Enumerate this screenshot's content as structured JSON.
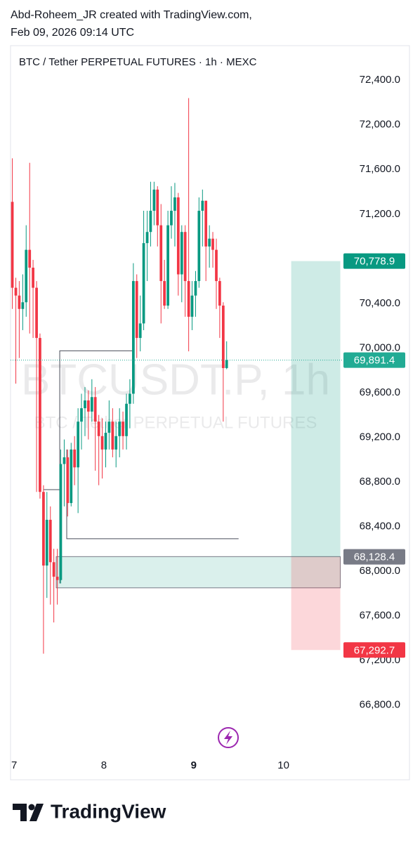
{
  "header": {
    "line1": "Abd-Roheem_JR created with TradingView.com,",
    "line2": "Feb 09, 2026 09:14 UTC"
  },
  "chart_data": {
    "type": "candlestick",
    "title": "BTC / Tether PERPETUAL FUTURES · 1h · MEXC",
    "watermark": {
      "symbol": "BTCUSDT.P, 1h",
      "description": "BTC / Tether PERPETUAL FUTURES"
    },
    "up_color": "#089981",
    "down_color": "#f23645",
    "grid": false,
    "xlim": [
      6.96,
      10.66
    ],
    "xticks": [
      7,
      8,
      9,
      10
    ],
    "ylim": [
      66350,
      72710
    ],
    "yticks": [
      {
        "value": 66800,
        "label": "66,800.0"
      },
      {
        "value": 67200,
        "label": "67,200.0"
      },
      {
        "value": 67600,
        "label": "67,600.0"
      },
      {
        "value": 68000,
        "label": "68,000.0"
      },
      {
        "value": 68400,
        "label": "68,400.0"
      },
      {
        "value": 68800,
        "label": "68,800.0"
      },
      {
        "value": 69200,
        "label": "69,200.0"
      },
      {
        "value": 69600,
        "label": "69,600.0"
      },
      {
        "value": 70000,
        "label": "70,000.0"
      },
      {
        "value": 70400,
        "label": "70,400.0"
      },
      {
        "value": 70800,
        "label": "70,800.0"
      },
      {
        "value": 71200,
        "label": "71,200.0"
      },
      {
        "value": 71600,
        "label": "71,600.0"
      },
      {
        "value": 72000,
        "label": "72,000.0"
      },
      {
        "value": 72400,
        "label": "72,400.0"
      }
    ],
    "x": [
      6.98,
      7.019,
      7.057,
      7.096,
      7.134,
      7.173,
      7.211,
      7.25,
      7.288,
      7.327,
      7.365,
      7.404,
      7.442,
      7.481,
      7.519,
      7.558,
      7.596,
      7.635,
      7.673,
      7.712,
      7.75,
      7.789,
      7.827,
      7.866,
      7.904,
      7.943,
      7.981,
      8.02,
      8.058,
      8.097,
      8.135,
      8.174,
      8.212,
      8.251,
      8.289,
      8.328,
      8.366,
      8.405,
      8.443,
      8.482,
      8.52,
      8.559,
      8.597,
      8.636,
      8.674,
      8.713,
      8.751,
      8.79,
      8.828,
      8.867,
      8.905,
      8.944,
      8.982,
      9.021,
      9.059,
      9.098,
      9.136,
      9.175,
      9.213,
      9.252,
      9.29,
      9.329,
      9.367
    ],
    "open": [
      71310,
      70540,
      70470,
      70350,
      70410,
      70880,
      70720,
      70540,
      70090,
      68710,
      68050,
      68460,
      68080,
      67950,
      67920,
      68960,
      69020,
      68610,
      69090,
      68930,
      69340,
      69460,
      69530,
      69430,
      69560,
      69340,
      69210,
      69090,
      69240,
      69340,
      69090,
      69210,
      69340,
      69210,
      69500,
      69590,
      70600,
      70090,
      70220,
      70940,
      71040,
      71230,
      71420,
      71100,
      70600,
      70380,
      71100,
      71230,
      71350,
      70660,
      71040,
      70600,
      70280,
      70470,
      70600,
      71230,
      71320,
      70910,
      70980,
      70880,
      70600,
      70380,
      69820
    ],
    "high": [
      71700,
      70630,
      70600,
      70660,
      71100,
      71660,
      70790,
      70600,
      70130,
      68770,
      68710,
      68580,
      68200,
      68200,
      69090,
      69180,
      69090,
      69150,
      69210,
      69460,
      69590,
      69650,
      69620,
      69720,
      69650,
      69400,
      69370,
      69340,
      69530,
      69460,
      69340,
      69460,
      69430,
      69590,
      69720,
      70760,
      70660,
      70470,
      71230,
      71230,
      71490,
      71490,
      71450,
      71290,
      70790,
      71230,
      71450,
      71480,
      71390,
      71100,
      71100,
      72240,
      70600,
      70690,
      71350,
      71420,
      71320,
      71100,
      71040,
      70980,
      70630,
      70410,
      70060
    ],
    "low": [
      70350,
      69680,
      69910,
      70160,
      70280,
      70130,
      70090,
      68710,
      68650,
      67260,
      67760,
      67700,
      67540,
      67700,
      67890,
      68580,
      68490,
      68580,
      68770,
      68520,
      69090,
      69210,
      69180,
      69340,
      68900,
      68770,
      68830,
      68930,
      69090,
      69020,
      68930,
      69020,
      69090,
      69090,
      69280,
      69500,
      69910,
      69970,
      70160,
      70600,
      70910,
      71100,
      70910,
      70220,
      70350,
      70350,
      70980,
      70910,
      70470,
      70410,
      70280,
      69970,
      70160,
      70280,
      70540,
      70910,
      70600,
      70720,
      70720,
      70350,
      70090,
      69340,
      69810
    ],
    "close": [
      70540,
      70470,
      70350,
      70410,
      70880,
      70720,
      70540,
      70090,
      68710,
      68050,
      68460,
      68080,
      67950,
      67920,
      68960,
      69020,
      68610,
      69090,
      68930,
      69340,
      69460,
      69530,
      69430,
      69560,
      69340,
      69210,
      69090,
      69240,
      69340,
      69090,
      69210,
      69340,
      69210,
      69500,
      69590,
      70600,
      70090,
      70220,
      70940,
      71040,
      71230,
      71420,
      71100,
      70600,
      70380,
      71100,
      71230,
      71350,
      70660,
      71040,
      70600,
      70280,
      70470,
      70600,
      71230,
      71320,
      70910,
      70980,
      70880,
      70600,
      70380,
      69820,
      69891.4
    ],
    "last_price": {
      "value": 69891.4,
      "label": "69,891.4",
      "color": "#22ab94"
    },
    "zone": {
      "x": [
        7.469,
        10.633
      ],
      "y": [
        67850,
        68130
      ]
    },
    "lines": [
      {
        "x": [
          8.328,
          7.508,
          7.508
        ],
        "y": [
          69975,
          69975,
          67890
        ]
      },
      {
        "x": [
          7.328,
          7.508
        ],
        "y": [
          68730,
          68730
        ]
      },
      {
        "x": [
          7.586,
          7.586,
          9.5
        ],
        "y": [
          69090,
          68290,
          68290
        ]
      }
    ],
    "position": {
      "x": [
        10.086,
        10.633
      ],
      "target": {
        "value": 70778.9,
        "label": "70,778.9",
        "color": "#089981"
      },
      "entry": {
        "value": 68128.4,
        "label": "68,128.4",
        "color": "#787b86"
      },
      "stop": {
        "value": 67292.7,
        "label": "67,292.7",
        "color": "#f23645"
      }
    }
  },
  "footer": {
    "brand": "TradingView"
  }
}
